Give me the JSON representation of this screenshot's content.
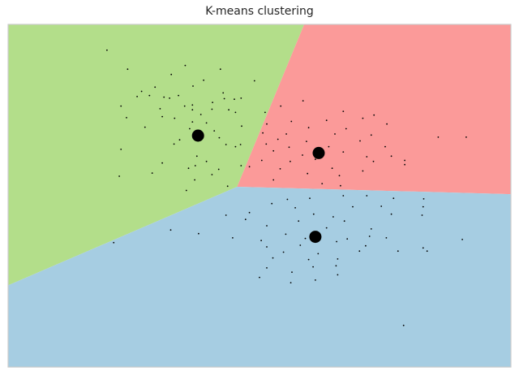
{
  "chart_data": {
    "type": "scatter",
    "title": "K-means clustering",
    "xlabel": "",
    "ylabel": "",
    "xlim": [
      -4.5,
      4.5
    ],
    "ylim": [
      -3.5,
      3.0
    ],
    "axes_visible": false,
    "grid": false,
    "colors": {
      "region_upper_left": "#b3de8a",
      "region_upper_right": "#fb9a99",
      "region_lower": "#a6cde2",
      "points": "#000000",
      "centroids": "#000000",
      "frame": "#cccccc"
    },
    "regions": [
      {
        "name": "cluster-1",
        "color": "#b3de8a",
        "polygon": [
          [
            -4.5,
            3.0
          ],
          [
            0.8,
            3.0
          ],
          [
            -0.4,
            -0.08
          ],
          [
            -4.5,
            -1.95
          ]
        ]
      },
      {
        "name": "cluster-2",
        "color": "#fb9a99",
        "polygon": [
          [
            0.8,
            3.0
          ],
          [
            4.5,
            3.0
          ],
          [
            4.5,
            -0.22
          ],
          [
            -0.4,
            -0.08
          ]
        ]
      },
      {
        "name": "cluster-3",
        "color": "#a6cde2",
        "polygon": [
          [
            -4.5,
            -1.95
          ],
          [
            -0.4,
            -0.08
          ],
          [
            4.5,
            -0.22
          ],
          [
            4.5,
            -3.5
          ],
          [
            -4.5,
            -3.5
          ]
        ]
      }
    ],
    "centroids": [
      {
        "x": -1.1,
        "y": 0.89
      },
      {
        "x": 1.06,
        "y": 0.56
      },
      {
        "x": 1.0,
        "y": -1.03
      }
    ],
    "points": [
      [
        -2.73,
        2.51
      ],
      [
        -1.33,
        2.22
      ],
      [
        -2.36,
        2.15
      ],
      [
        -0.7,
        2.15
      ],
      [
        -1.58,
        2.05
      ],
      [
        -0.09,
        1.93
      ],
      [
        -1.0,
        1.94
      ],
      [
        -1.19,
        1.83
      ],
      [
        -1.87,
        1.81
      ],
      [
        -2.11,
        1.73
      ],
      [
        -0.65,
        1.7
      ],
      [
        -2.19,
        1.63
      ],
      [
        -1.97,
        1.65
      ],
      [
        -1.71,
        1.62
      ],
      [
        -1.61,
        1.6
      ],
      [
        -1.45,
        1.65
      ],
      [
        -0.63,
        1.59
      ],
      [
        -0.45,
        1.58
      ],
      [
        -0.33,
        1.6
      ],
      [
        -0.84,
        1.52
      ],
      [
        -1.2,
        1.47
      ],
      [
        -1.34,
        1.45
      ],
      [
        -2.48,
        1.45
      ],
      [
        -1.78,
        1.4
      ],
      [
        -1.2,
        1.38
      ],
      [
        -0.85,
        1.39
      ],
      [
        -0.55,
        1.38
      ],
      [
        -0.43,
        1.33
      ],
      [
        -1.05,
        1.29
      ],
      [
        -1.74,
        1.25
      ],
      [
        -2.38,
        1.23
      ],
      [
        -1.52,
        1.22
      ],
      [
        -1.2,
        1.15
      ],
      [
        -0.95,
        1.13
      ],
      [
        -0.32,
        1.07
      ],
      [
        -2.05,
        1.05
      ],
      [
        -1.25,
        1.02
      ],
      [
        -0.81,
        0.98
      ],
      [
        -1.1,
        0.89
      ],
      [
        -0.72,
        0.85
      ],
      [
        -1.43,
        0.81
      ],
      [
        -0.6,
        0.72
      ],
      [
        -0.34,
        0.72
      ],
      [
        -1.53,
        0.73
      ],
      [
        -0.43,
        0.68
      ],
      [
        -2.48,
        0.63
      ],
      [
        -1.12,
        0.5
      ],
      [
        -0.95,
        0.4
      ],
      [
        -1.15,
        0.32
      ],
      [
        -1.74,
        0.37
      ],
      [
        -1.27,
        0.27
      ],
      [
        -0.73,
        0.25
      ],
      [
        -1.92,
        0.18
      ],
      [
        -2.51,
        0.12
      ],
      [
        -0.33,
        0.32
      ],
      [
        -0.85,
        0.15
      ],
      [
        -1.16,
        0.05
      ],
      [
        -1.31,
        -0.15
      ],
      [
        -0.57,
        -0.07
      ],
      [
        0.1,
        1.33
      ],
      [
        0.38,
        1.45
      ],
      [
        0.78,
        1.55
      ],
      [
        1.5,
        1.35
      ],
      [
        2.05,
        1.28
      ],
      [
        1.85,
        1.22
      ],
      [
        1.2,
        1.18
      ],
      [
        0.57,
        1.16
      ],
      [
        0.13,
        1.11
      ],
      [
        2.28,
        1.11
      ],
      [
        0.88,
        1.04
      ],
      [
        1.55,
        1.02
      ],
      [
        0.06,
        0.94
      ],
      [
        0.48,
        0.92
      ],
      [
        1.35,
        0.92
      ],
      [
        2.0,
        0.9
      ],
      [
        3.2,
        0.86
      ],
      [
        3.7,
        0.86
      ],
      [
        0.33,
        0.82
      ],
      [
        0.84,
        0.78
      ],
      [
        1.8,
        0.79
      ],
      [
        0.12,
        0.73
      ],
      [
        0.53,
        0.67
      ],
      [
        1.24,
        0.68
      ],
      [
        2.25,
        0.68
      ],
      [
        0.25,
        0.6
      ],
      [
        1.5,
        0.58
      ],
      [
        0.77,
        0.52
      ],
      [
        1.92,
        0.49
      ],
      [
        2.36,
        0.5
      ],
      [
        0.04,
        0.42
      ],
      [
        0.55,
        0.4
      ],
      [
        1.0,
        0.44
      ],
      [
        2.04,
        0.4
      ],
      [
        2.6,
        0.42
      ],
      [
        -0.18,
        0.3
      ],
      [
        0.37,
        0.26
      ],
      [
        1.3,
        0.27
      ],
      [
        1.85,
        0.22
      ],
      [
        2.6,
        0.34
      ],
      [
        0.86,
        0.17
      ],
      [
        1.43,
        0.13
      ],
      [
        0.25,
        0.05
      ],
      [
        1.12,
        -0.02
      ],
      [
        1.45,
        -0.06
      ],
      [
        0.5,
        -0.32
      ],
      [
        0.9,
        -0.3
      ],
      [
        1.5,
        -0.25
      ],
      [
        1.92,
        -0.25
      ],
      [
        2.4,
        -0.3
      ],
      [
        2.94,
        -0.31
      ],
      [
        0.22,
        -0.4
      ],
      [
        0.64,
        -0.48
      ],
      [
        1.67,
        -0.46
      ],
      [
        2.18,
        -0.45
      ],
      [
        2.93,
        -0.46
      ],
      [
        -0.6,
        -0.62
      ],
      [
        -0.18,
        -0.57
      ],
      [
        0.97,
        -0.6
      ],
      [
        1.32,
        -0.65
      ],
      [
        2.36,
        -0.6
      ],
      [
        2.91,
        -0.62
      ],
      [
        -0.25,
        -0.7
      ],
      [
        0.7,
        -0.73
      ],
      [
        1.52,
        -0.73
      ],
      [
        0.13,
        -0.82
      ],
      [
        1.2,
        -0.86
      ],
      [
        2.0,
        -0.88
      ],
      [
        -1.59,
        -0.9
      ],
      [
        -1.09,
        -0.97
      ],
      [
        0.47,
        -0.98
      ],
      [
        1.03,
        -1.0
      ],
      [
        1.97,
        -1.02
      ],
      [
        -0.48,
        -1.05
      ],
      [
        0.82,
        -1.06
      ],
      [
        1.57,
        -1.07
      ],
      [
        2.27,
        -1.05
      ],
      [
        -2.61,
        -1.14
      ],
      [
        0.03,
        -1.1
      ],
      [
        1.38,
        -1.12
      ],
      [
        0.13,
        -1.22
      ],
      [
        0.73,
        -1.19
      ],
      [
        1.9,
        -1.2
      ],
      [
        3.63,
        -1.08
      ],
      [
        0.43,
        -1.32
      ],
      [
        1.05,
        -1.35
      ],
      [
        0.24,
        -1.43
      ],
      [
        0.88,
        -1.46
      ],
      [
        1.4,
        -1.45
      ],
      [
        1.79,
        -1.3
      ],
      [
        2.48,
        -1.3
      ],
      [
        3.0,
        -1.3
      ],
      [
        2.93,
        -1.24
      ],
      [
        0.96,
        -1.6
      ],
      [
        1.37,
        -1.58
      ],
      [
        0.13,
        -1.62
      ],
      [
        0.58,
        -1.7
      ],
      [
        1.4,
        -1.75
      ],
      [
        0.0,
        -1.8
      ],
      [
        1.0,
        -1.85
      ],
      [
        0.56,
        -1.9
      ],
      [
        2.58,
        -2.71
      ]
    ]
  }
}
